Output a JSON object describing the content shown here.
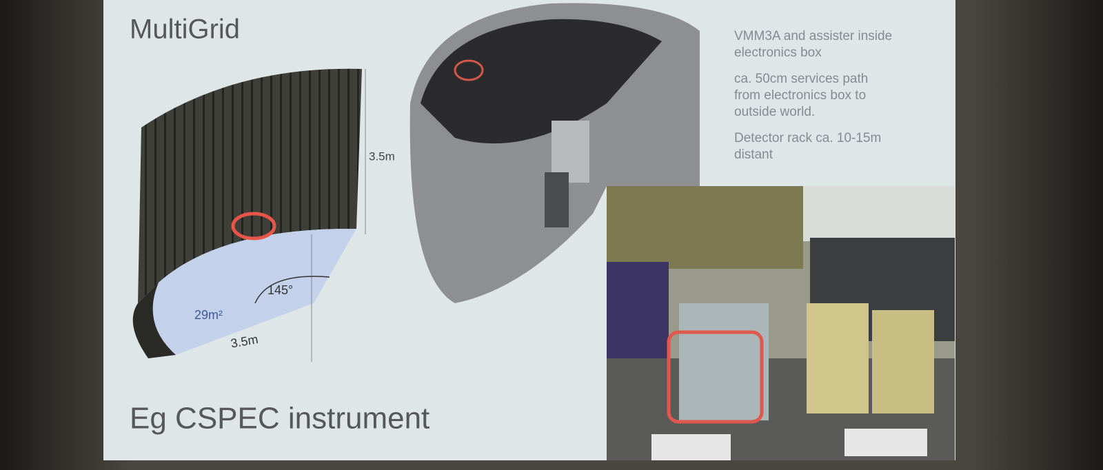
{
  "slide": {
    "title": "MultiGrid",
    "caption": "Eg CSPEC instrument",
    "diagram": {
      "height_label": "3.5m",
      "angle_label": "145°",
      "area_label": "29m²",
      "radius_label": "3.5m"
    },
    "notes": [
      [
        "VMM3A and assister inside",
        "electronics box"
      ],
      [
        "ca. 50cm services path",
        "from electronics box to",
        "outside world."
      ],
      [
        "Detector rack ca. 10-15m",
        "distant"
      ]
    ]
  }
}
